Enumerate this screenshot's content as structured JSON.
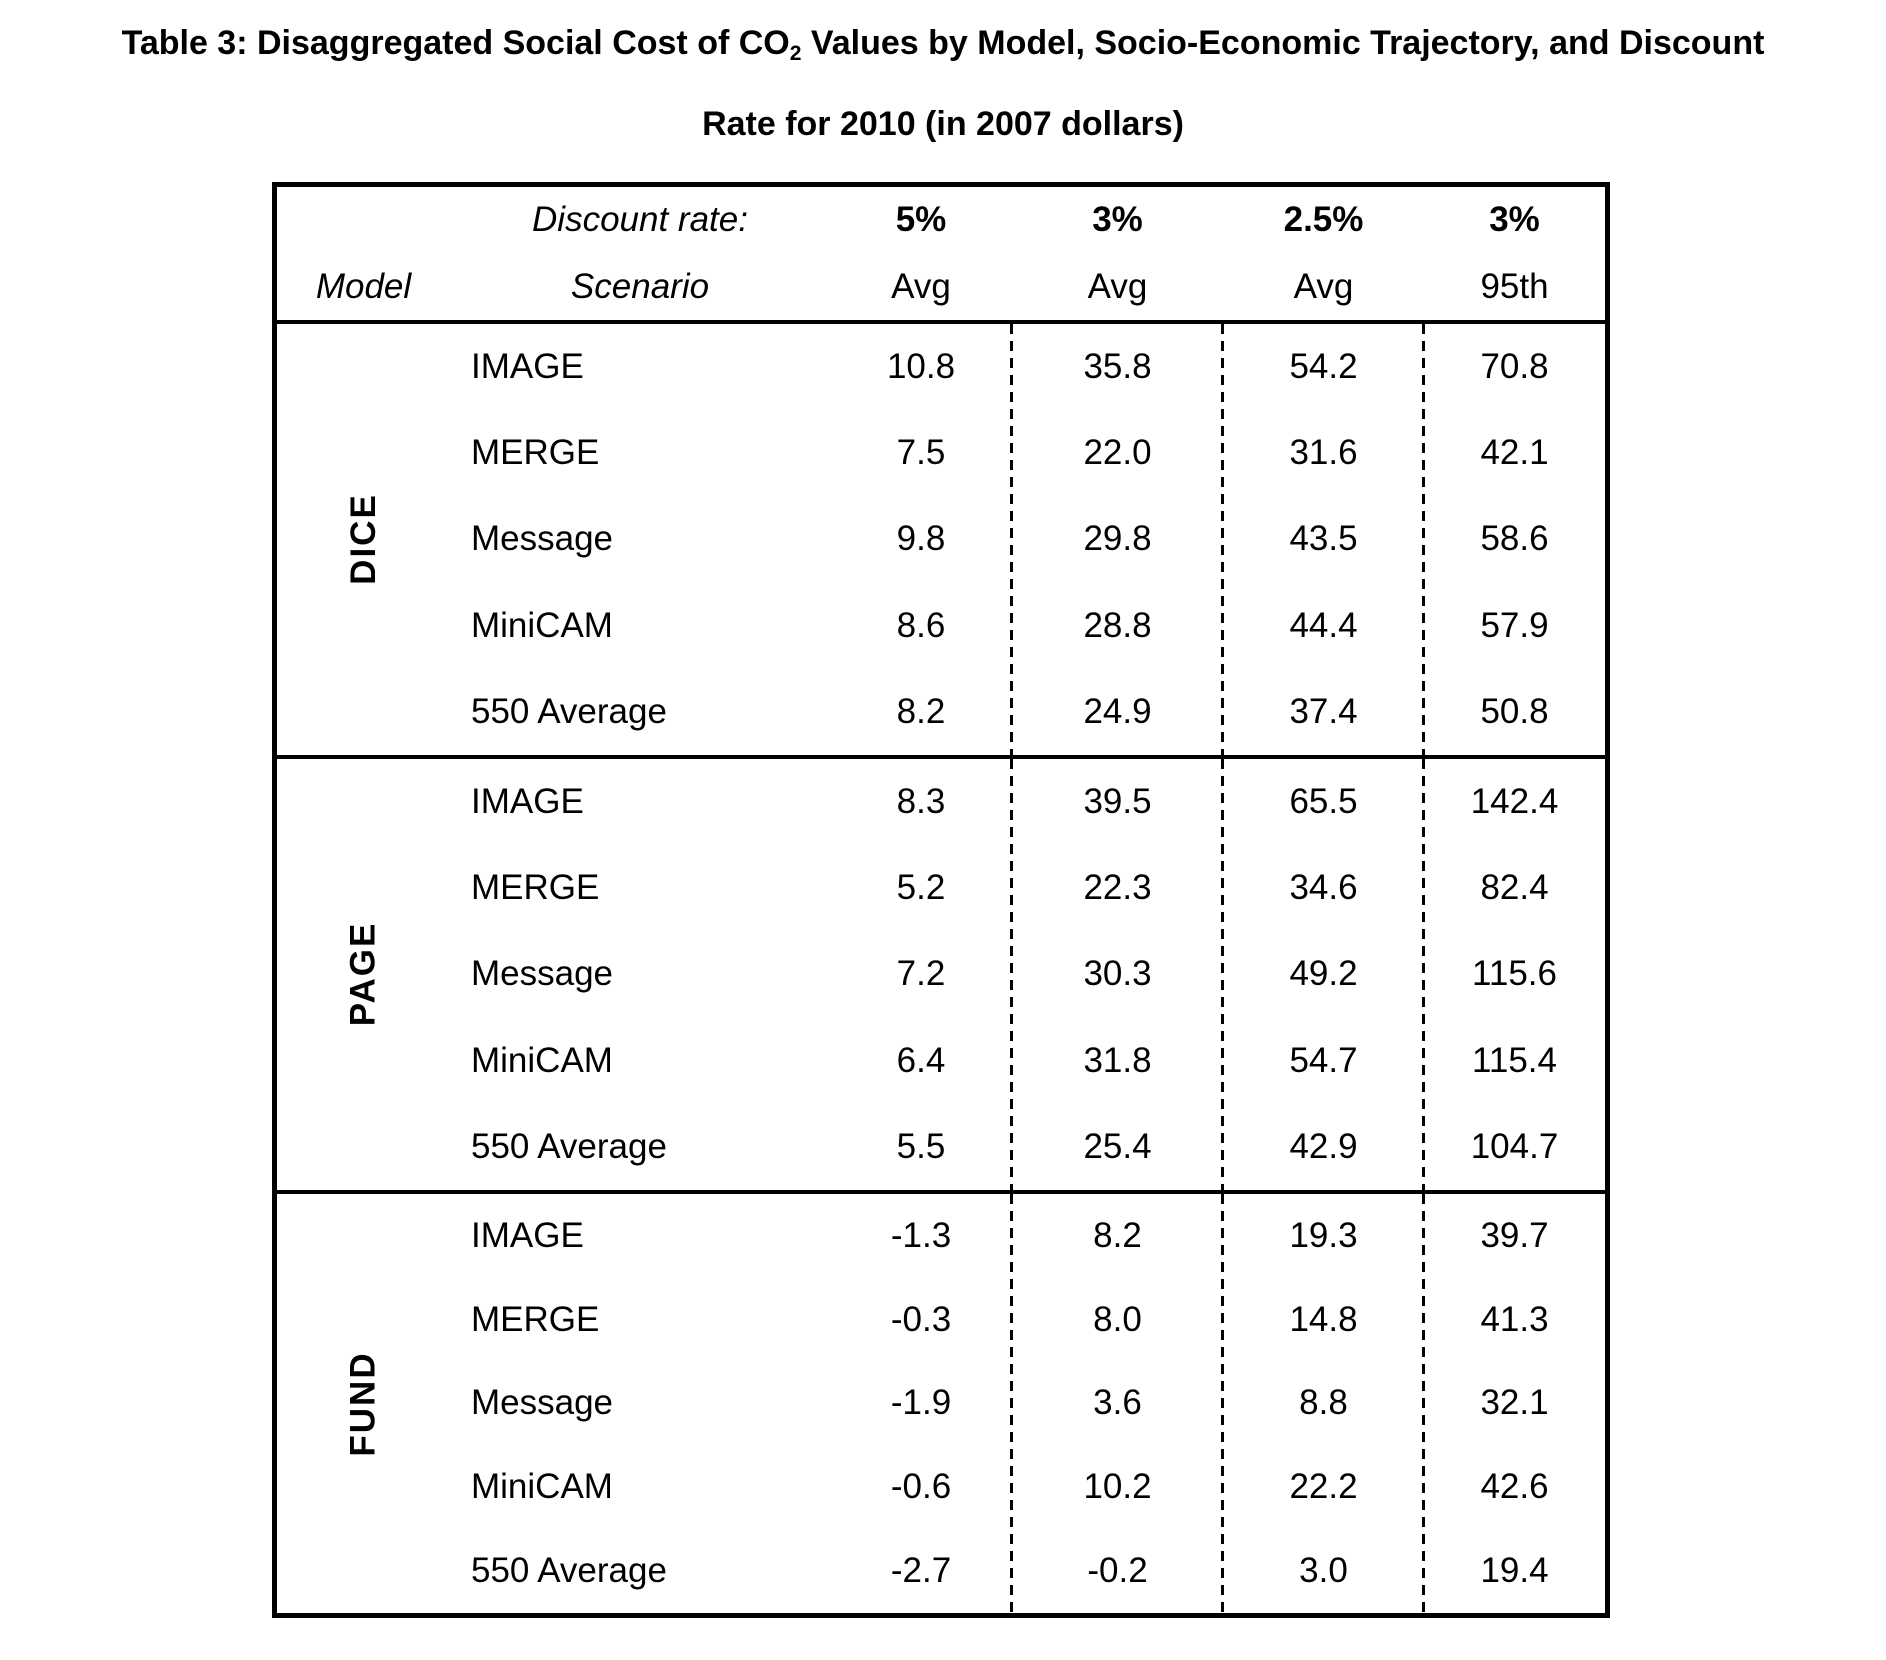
{
  "title": {
    "line1_pre": "Table 3: Disaggregated Social Cost of CO",
    "line1_sub": "2",
    "line1_post": " Values by Model, Socio-Economic Trajectory, and Discount",
    "line2": "Rate for 2010 (in 2007 dollars)"
  },
  "table": {
    "header": {
      "discount_rate_label": "Discount rate:",
      "model_label": "Model",
      "scenario_label": "Scenario",
      "rate_columns": [
        {
          "rate": "5%",
          "stat": "Avg"
        },
        {
          "rate": "3%",
          "stat": "Avg"
        },
        {
          "rate": "2.5%",
          "stat": "Avg"
        },
        {
          "rate": "3%",
          "stat": "95th"
        }
      ]
    },
    "groups": [
      {
        "model": "DICE",
        "rows": [
          {
            "scenario": "IMAGE",
            "values": [
              "10.8",
              "35.8",
              "54.2",
              "70.8"
            ]
          },
          {
            "scenario": "MERGE",
            "values": [
              "7.5",
              "22.0",
              "31.6",
              "42.1"
            ]
          },
          {
            "scenario": "Message",
            "values": [
              "9.8",
              "29.8",
              "43.5",
              "58.6"
            ]
          },
          {
            "scenario": "MiniCAM",
            "values": [
              "8.6",
              "28.8",
              "44.4",
              "57.9"
            ]
          },
          {
            "scenario": "550 Average",
            "values": [
              "8.2",
              "24.9",
              "37.4",
              "50.8"
            ]
          }
        ]
      },
      {
        "model": "PAGE",
        "rows": [
          {
            "scenario": "IMAGE",
            "values": [
              "8.3",
              "39.5",
              "65.5",
              "142.4"
            ]
          },
          {
            "scenario": "MERGE",
            "values": [
              "5.2",
              "22.3",
              "34.6",
              "82.4"
            ]
          },
          {
            "scenario": "Message",
            "values": [
              "7.2",
              "30.3",
              "49.2",
              "115.6"
            ]
          },
          {
            "scenario": "MiniCAM",
            "values": [
              "6.4",
              "31.8",
              "54.7",
              "115.4"
            ]
          },
          {
            "scenario": "550 Average",
            "values": [
              "5.5",
              "25.4",
              "42.9",
              "104.7"
            ]
          }
        ]
      },
      {
        "model": "FUND",
        "rows": [
          {
            "scenario": "IMAGE",
            "values": [
              "-1.3",
              "8.2",
              "19.3",
              "39.7"
            ]
          },
          {
            "scenario": "MERGE",
            "values": [
              "-0.3",
              "8.0",
              "14.8",
              "41.3"
            ]
          },
          {
            "scenario": "Message",
            "values": [
              "-1.9",
              "3.6",
              "8.8",
              "32.1"
            ]
          },
          {
            "scenario": "MiniCAM",
            "values": [
              "-0.6",
              "10.2",
              "22.2",
              "42.6"
            ]
          },
          {
            "scenario": "550 Average",
            "values": [
              "-2.7",
              "-0.2",
              "3.0",
              "19.4"
            ]
          }
        ]
      }
    ]
  },
  "chart_data": {
    "type": "table",
    "title": "Table 3: Disaggregated Social Cost of CO2 Values by Model, Socio-Economic Trajectory, and Discount Rate for 2010 (in 2007 dollars)",
    "columns": [
      "Model",
      "Scenario",
      "5% Avg",
      "3% Avg",
      "2.5% Avg",
      "3% 95th"
    ],
    "rows": [
      [
        "DICE",
        "IMAGE",
        10.8,
        35.8,
        54.2,
        70.8
      ],
      [
        "DICE",
        "MERGE",
        7.5,
        22.0,
        31.6,
        42.1
      ],
      [
        "DICE",
        "Message",
        9.8,
        29.8,
        43.5,
        58.6
      ],
      [
        "DICE",
        "MiniCAM",
        8.6,
        28.8,
        44.4,
        57.9
      ],
      [
        "DICE",
        "550 Average",
        8.2,
        24.9,
        37.4,
        50.8
      ],
      [
        "PAGE",
        "IMAGE",
        8.3,
        39.5,
        65.5,
        142.4
      ],
      [
        "PAGE",
        "MERGE",
        5.2,
        22.3,
        34.6,
        82.4
      ],
      [
        "PAGE",
        "Message",
        7.2,
        30.3,
        49.2,
        115.6
      ],
      [
        "PAGE",
        "MiniCAM",
        6.4,
        31.8,
        54.7,
        115.4
      ],
      [
        "PAGE",
        "550 Average",
        5.5,
        25.4,
        42.9,
        104.7
      ],
      [
        "FUND",
        "IMAGE",
        -1.3,
        8.2,
        19.3,
        39.7
      ],
      [
        "FUND",
        "MERGE",
        -0.3,
        8.0,
        14.8,
        41.3
      ],
      [
        "FUND",
        "Message",
        -1.9,
        3.6,
        8.8,
        32.1
      ],
      [
        "FUND",
        "MiniCAM",
        -0.6,
        10.2,
        22.2,
        42.6
      ],
      [
        "FUND",
        "550 Average",
        -2.7,
        -0.2,
        3.0,
        19.4
      ]
    ]
  }
}
